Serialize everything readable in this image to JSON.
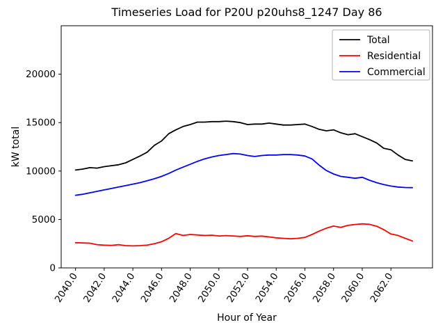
{
  "chart_data": {
    "type": "line",
    "title": "Timeseries Load for P20U p20uhs8_1247  Day 86",
    "xlabel": "Hour of Year",
    "ylabel": "kW total",
    "xlim": [
      2039.0,
      2064.9
    ],
    "ylim": [
      0,
      25000
    ],
    "xticks": [
      2040.0,
      2042.0,
      2044.0,
      2046.0,
      2048.0,
      2050.0,
      2052.0,
      2054.0,
      2056.0,
      2058.0,
      2060.0,
      2062.0
    ],
    "yticks": [
      0,
      5000,
      10000,
      15000,
      20000
    ],
    "grid": false,
    "legend_position": "upper right",
    "x": [
      2040.0,
      2040.5,
      2041.0,
      2041.5,
      2042.0,
      2042.5,
      2043.0,
      2043.5,
      2044.0,
      2044.5,
      2045.0,
      2045.5,
      2046.0,
      2046.5,
      2047.0,
      2047.5,
      2048.0,
      2048.5,
      2049.0,
      2049.5,
      2050.0,
      2050.5,
      2051.0,
      2051.5,
      2052.0,
      2052.5,
      2053.0,
      2053.5,
      2054.0,
      2054.5,
      2055.0,
      2055.5,
      2056.0,
      2056.5,
      2057.0,
      2057.5,
      2058.0,
      2058.5,
      2059.0,
      2059.5,
      2060.0,
      2060.5,
      2061.0,
      2061.5,
      2062.0,
      2062.5,
      2063.0,
      2063.5
    ],
    "series": [
      {
        "name": "Total",
        "color": "#000000",
        "values": [
          10100,
          10200,
          10350,
          10300,
          10450,
          10550,
          10650,
          10850,
          11200,
          11550,
          11950,
          12650,
          13100,
          13850,
          14250,
          14600,
          14800,
          15050,
          15050,
          15100,
          15100,
          15150,
          15100,
          15000,
          14800,
          14850,
          14850,
          14950,
          14850,
          14750,
          14750,
          14800,
          14850,
          14600,
          14300,
          14150,
          14250,
          13950,
          13750,
          13850,
          13550,
          13250,
          12900,
          12350,
          12200,
          11650,
          11200,
          11050
        ]
      },
      {
        "name": "Residential",
        "color": "#ff0000",
        "values": [
          2600,
          2580,
          2550,
          2400,
          2350,
          2320,
          2400,
          2300,
          2270,
          2300,
          2350,
          2500,
          2700,
          3050,
          3550,
          3350,
          3450,
          3400,
          3350,
          3380,
          3300,
          3330,
          3300,
          3250,
          3320,
          3250,
          3280,
          3200,
          3100,
          3050,
          3000,
          3050,
          3150,
          3450,
          3800,
          4100,
          4320,
          4180,
          4390,
          4480,
          4550,
          4500,
          4300,
          3950,
          3500,
          3350,
          3050,
          2780
        ]
      },
      {
        "name": "Commercial",
        "color": "#0000ff",
        "values": [
          7500,
          7600,
          7750,
          7900,
          8050,
          8200,
          8350,
          8500,
          8650,
          8800,
          9000,
          9200,
          9450,
          9750,
          10100,
          10400,
          10700,
          11000,
          11250,
          11450,
          11600,
          11700,
          11800,
          11750,
          11600,
          11500,
          11600,
          11650,
          11650,
          11700,
          11700,
          11650,
          11550,
          11250,
          10600,
          10050,
          9700,
          9450,
          9350,
          9250,
          9350,
          9050,
          8800,
          8600,
          8450,
          8350,
          8300,
          8280
        ]
      }
    ]
  }
}
